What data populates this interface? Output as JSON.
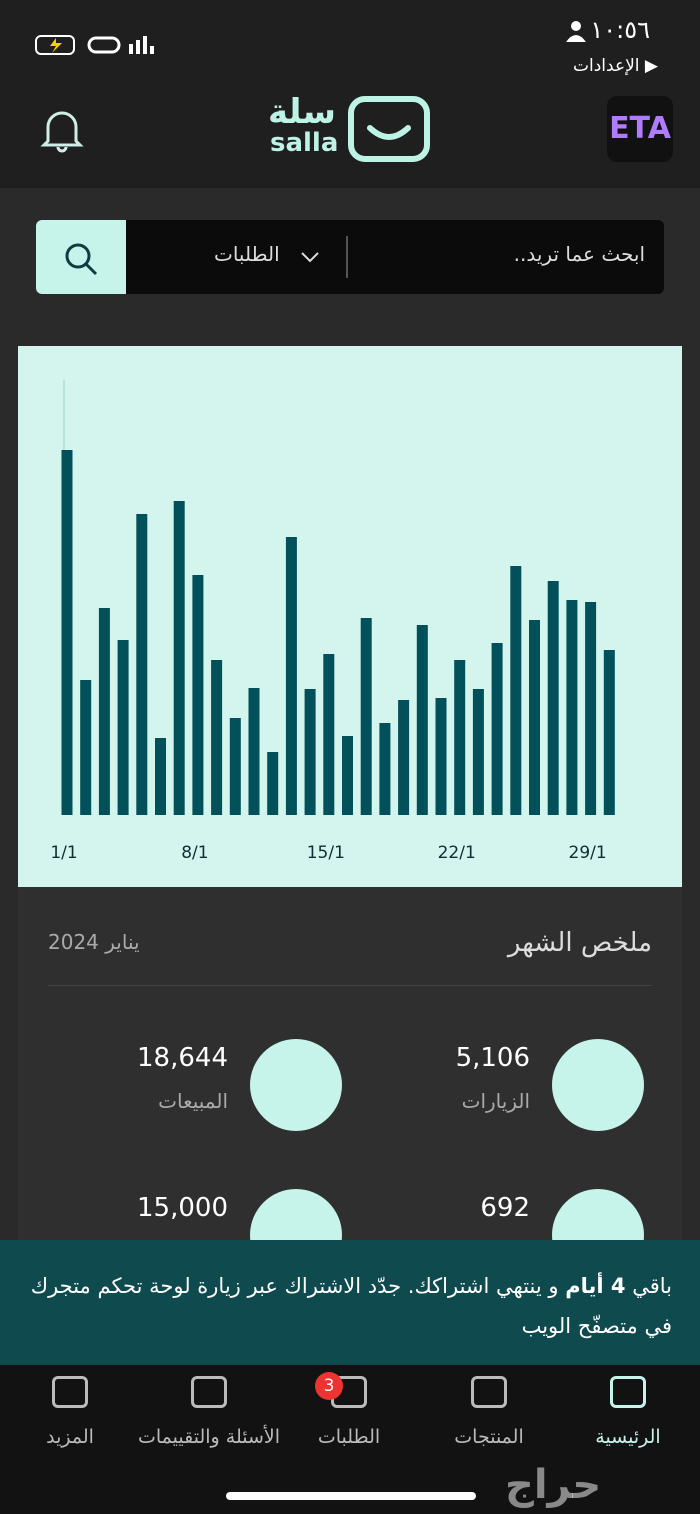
{
  "status_bar": {
    "time": "١٠:٥٦",
    "back_label": "الإعدادات"
  },
  "header": {
    "logo_ar": "سلة",
    "logo_en": "salla",
    "avatar_text": "ETA"
  },
  "search": {
    "placeholder": "ابحث عما تريد..",
    "filter": "الطلبات"
  },
  "chart_data": {
    "type": "bar",
    "color": "#01505a",
    "background": "#d3f5ee",
    "categories": [
      "1/1",
      null,
      null,
      null,
      null,
      null,
      null,
      "8/1",
      null,
      null,
      null,
      null,
      null,
      null,
      "15/1",
      null,
      null,
      null,
      null,
      null,
      null,
      "22/1",
      null,
      null,
      null,
      null,
      null,
      null,
      "29/1",
      null
    ],
    "values": [
      365,
      135,
      207,
      175,
      301,
      77,
      314,
      240,
      155,
      97,
      127,
      63,
      278,
      126,
      161,
      79,
      197,
      92,
      115,
      190,
      117,
      155,
      126,
      172,
      249,
      195,
      234,
      215,
      213,
      165
    ],
    "ylim": [
      0,
      435
    ]
  },
  "summary": {
    "title": "ملخص الشهر",
    "period": "يناير 2024",
    "items": [
      {
        "value": "5,106",
        "label": "الزيارات"
      },
      {
        "value": "18,644",
        "label": "المبيعات"
      },
      {
        "value": "692"
      },
      {
        "value": "15,000"
      }
    ]
  },
  "banner": {
    "before": "باقي ",
    "bold": "4 أيام",
    "after": " و ينتهي اشتراكك. جدّد الاشتراك عبر زيارة لوحة تحكم متجرك في متصفّح الويب"
  },
  "nav": {
    "items": [
      {
        "label": "الرئيسية"
      },
      {
        "label": "المنتجات"
      },
      {
        "label": "الطلبات",
        "badge": "3"
      },
      {
        "label": "الأسئلة والتقييمات"
      },
      {
        "label": "المزيد"
      }
    ]
  },
  "watermark": "حراج"
}
